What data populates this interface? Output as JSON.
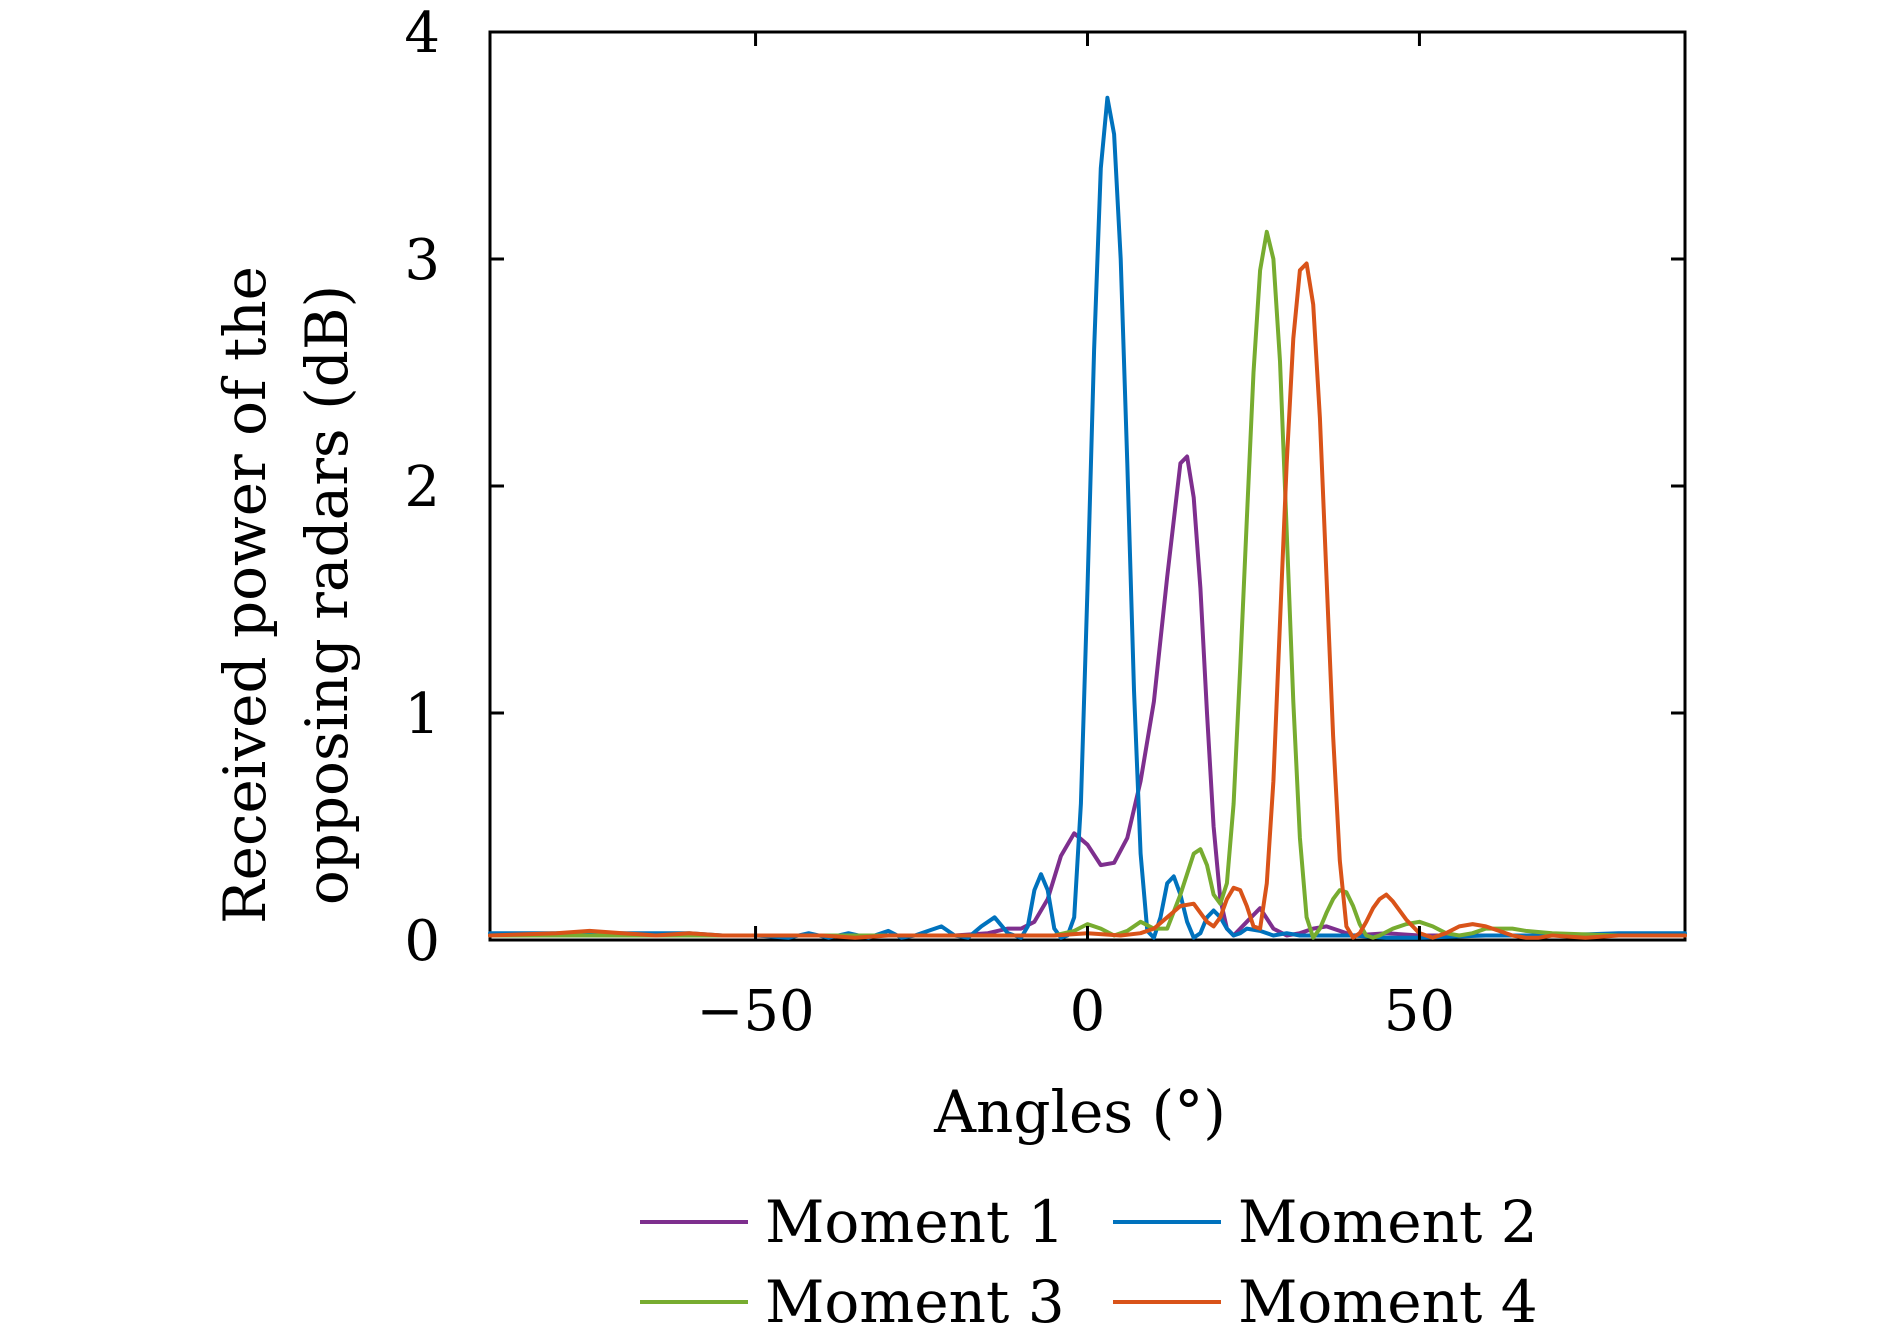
{
  "chart_data": {
    "type": "line",
    "title": "",
    "xlabel": "Angles (°)",
    "ylabel_lines": [
      "Received power of the",
      "opposing radars (dB)"
    ],
    "xlim": [
      -90,
      90
    ],
    "ylim": [
      0,
      4
    ],
    "xticks": [
      -50,
      0,
      50
    ],
    "xtick_labels": [
      "−50",
      "0",
      "50"
    ],
    "yticks": [
      0,
      1,
      2,
      3,
      4
    ],
    "ytick_labels": [
      "0",
      "1",
      "2",
      "3",
      "4"
    ],
    "grid": false,
    "legend_position": "bottom",
    "series": [
      {
        "name": "Moment 1",
        "color": "#7E2F8E",
        "x": [
          -90,
          -80,
          -75,
          -70,
          -65,
          -60,
          -55,
          -50,
          -45,
          -40,
          -35,
          -30,
          -25,
          -20,
          -15,
          -12,
          -10,
          -8,
          -6,
          -4,
          -2,
          0,
          2,
          4,
          6,
          8,
          10,
          12,
          14,
          15,
          16,
          17,
          18,
          19,
          20,
          21,
          22,
          24,
          26,
          28,
          30,
          32,
          34,
          36,
          38,
          40,
          45,
          50,
          55,
          60,
          70,
          80,
          90
        ],
        "y": [
          0.02,
          0.02,
          0.02,
          0.02,
          0.02,
          0.02,
          0.02,
          0.02,
          0.02,
          0.02,
          0.02,
          0.02,
          0.02,
          0.02,
          0.03,
          0.05,
          0.05,
          0.08,
          0.18,
          0.37,
          0.47,
          0.42,
          0.33,
          0.34,
          0.45,
          0.7,
          1.05,
          1.6,
          2.1,
          2.13,
          1.95,
          1.55,
          1.0,
          0.5,
          0.18,
          0.05,
          0.02,
          0.08,
          0.14,
          0.05,
          0.02,
          0.03,
          0.05,
          0.06,
          0.04,
          0.02,
          0.03,
          0.02,
          0.02,
          0.02,
          0.02,
          0.02,
          0.02
        ]
      },
      {
        "name": "Moment 2",
        "color": "#0072BD",
        "x": [
          -90,
          -80,
          -70,
          -60,
          -55,
          -50,
          -45,
          -42,
          -39,
          -36,
          -33,
          -30,
          -28,
          -26,
          -24,
          -22,
          -20,
          -18,
          -16,
          -14,
          -12,
          -10,
          -9,
          -8,
          -7,
          -6,
          -5,
          -4,
          -3,
          -2,
          -1,
          0,
          1,
          2,
          3,
          4,
          5,
          6,
          7,
          8,
          9,
          10,
          11,
          12,
          13,
          14,
          15,
          16,
          17,
          18,
          19,
          20,
          21,
          22,
          23,
          24,
          26,
          28,
          30,
          32,
          35,
          40,
          45,
          50,
          60,
          70,
          80,
          90
        ],
        "y": [
          0.03,
          0.03,
          0.03,
          0.03,
          0.02,
          0.02,
          0.01,
          0.03,
          0.01,
          0.03,
          0.01,
          0.04,
          0.01,
          0.02,
          0.04,
          0.06,
          0.02,
          0.01,
          0.06,
          0.1,
          0.03,
          0.01,
          0.06,
          0.22,
          0.29,
          0.22,
          0.05,
          0.01,
          0.02,
          0.1,
          0.6,
          1.55,
          2.6,
          3.4,
          3.71,
          3.55,
          3.0,
          2.1,
          1.1,
          0.38,
          0.04,
          0.01,
          0.1,
          0.25,
          0.28,
          0.2,
          0.08,
          0.01,
          0.03,
          0.1,
          0.13,
          0.1,
          0.05,
          0.02,
          0.03,
          0.05,
          0.04,
          0.02,
          0.03,
          0.02,
          0.02,
          0.02,
          0.01,
          0.01,
          0.02,
          0.02,
          0.03,
          0.03
        ]
      },
      {
        "name": "Moment 3",
        "color": "#77AC30",
        "x": [
          -90,
          -80,
          -70,
          -60,
          -50,
          -40,
          -30,
          -20,
          -10,
          -5,
          -2,
          0,
          2,
          4,
          6,
          8,
          10,
          12,
          14,
          16,
          17,
          18,
          19,
          20,
          21,
          22,
          23,
          24,
          25,
          26,
          27,
          28,
          29,
          30,
          31,
          32,
          33,
          34,
          35,
          36,
          37,
          38,
          39,
          40,
          41,
          42,
          43,
          44,
          46,
          48,
          50,
          52,
          54,
          56,
          58,
          60,
          64,
          66,
          70,
          80,
          90
        ],
        "y": [
          0.02,
          0.02,
          0.02,
          0.02,
          0.02,
          0.02,
          0.02,
          0.02,
          0.02,
          0.02,
          0.04,
          0.07,
          0.05,
          0.02,
          0.04,
          0.08,
          0.05,
          0.05,
          0.2,
          0.38,
          0.4,
          0.33,
          0.2,
          0.16,
          0.25,
          0.6,
          1.2,
          1.85,
          2.5,
          2.95,
          3.12,
          3.0,
          2.55,
          1.8,
          1.05,
          0.45,
          0.1,
          0.01,
          0.05,
          0.12,
          0.18,
          0.22,
          0.21,
          0.15,
          0.07,
          0.02,
          0.01,
          0.02,
          0.05,
          0.07,
          0.08,
          0.06,
          0.03,
          0.02,
          0.03,
          0.05,
          0.05,
          0.04,
          0.03,
          0.02,
          0.02
        ]
      },
      {
        "name": "Moment 4",
        "color": "#D95319",
        "x": [
          -90,
          -80,
          -75,
          -70,
          -65,
          -60,
          -55,
          -50,
          -45,
          -40,
          -35,
          -30,
          -25,
          -20,
          -15,
          -10,
          -5,
          0,
          5,
          8,
          10,
          12,
          14,
          16,
          17,
          18,
          19,
          20,
          21,
          22,
          23,
          24,
          25,
          26,
          27,
          28,
          29,
          30,
          31,
          32,
          33,
          34,
          35,
          36,
          37,
          38,
          39,
          40,
          41,
          42,
          43,
          44,
          45,
          46,
          48,
          50,
          52,
          54,
          56,
          58,
          60,
          62,
          64,
          66,
          68,
          70,
          75,
          80,
          90
        ],
        "y": [
          0.02,
          0.03,
          0.04,
          0.03,
          0.02,
          0.03,
          0.02,
          0.02,
          0.02,
          0.02,
          0.01,
          0.02,
          0.02,
          0.02,
          0.02,
          0.02,
          0.02,
          0.03,
          0.02,
          0.03,
          0.05,
          0.1,
          0.15,
          0.16,
          0.12,
          0.08,
          0.06,
          0.1,
          0.18,
          0.23,
          0.22,
          0.15,
          0.06,
          0.05,
          0.25,
          0.7,
          1.4,
          2.1,
          2.65,
          2.95,
          2.98,
          2.8,
          2.3,
          1.6,
          0.9,
          0.35,
          0.06,
          0.01,
          0.03,
          0.08,
          0.14,
          0.18,
          0.2,
          0.17,
          0.09,
          0.03,
          0.01,
          0.03,
          0.06,
          0.07,
          0.06,
          0.04,
          0.02,
          0.01,
          0.01,
          0.02,
          0.01,
          0.02,
          0.02
        ]
      }
    ]
  }
}
